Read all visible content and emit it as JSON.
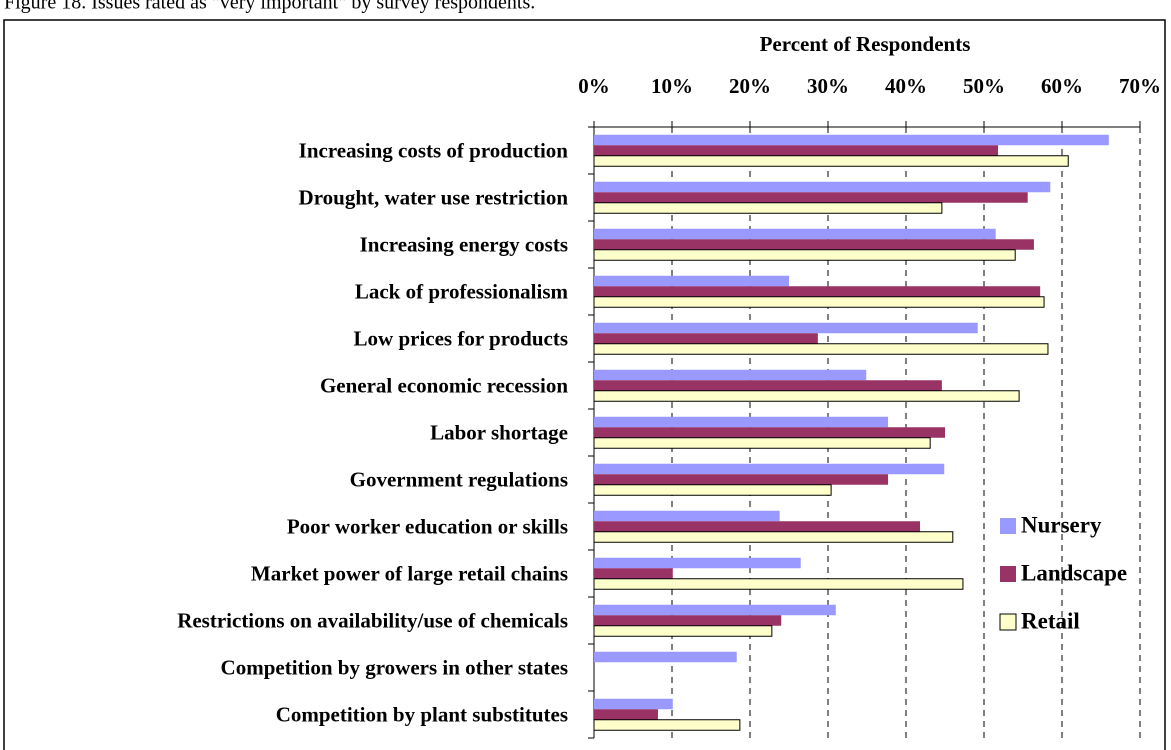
{
  "chart_data": {
    "type": "bar",
    "orientation": "horizontal",
    "caption": "Figure 18. Issues rated as \"very important\" by survey respondents.",
    "x_label": "Percent of Respondents",
    "categories": [
      "Increasing costs of production",
      "Drought, water use restriction",
      "Increasing energy costs",
      "Lack of professionalism",
      "Low prices for products",
      "General economic recession",
      "Labor shortage",
      "Government regulations",
      "Poor worker education or skills",
      "Market power of large retail chains",
      "Restrictions on availability/use of chemicals",
      "Competition by growers in other states",
      "Competition by plant substitutes"
    ],
    "series": [
      {
        "name": "Nursery",
        "color": "#9999ff",
        "values": [
          66.0,
          58.5,
          51.5,
          25.0,
          49.2,
          34.9,
          37.7,
          44.9,
          23.8,
          26.5,
          31.0,
          18.3,
          10.1
        ]
      },
      {
        "name": "Landscape",
        "color": "#993366",
        "values": [
          51.8,
          55.6,
          56.4,
          57.2,
          28.7,
          44.6,
          45.0,
          37.7,
          41.8,
          10.1,
          24.0,
          0,
          8.2
        ]
      },
      {
        "name": "Retail",
        "color": "#ffffcc",
        "values": [
          60.8,
          44.6,
          54.0,
          57.7,
          58.2,
          54.5,
          43.1,
          30.4,
          46.0,
          47.3,
          22.8,
          0,
          18.7
        ]
      }
    ],
    "xlim": [
      0,
      70
    ],
    "xticks": [
      {
        "value": 0,
        "label": "0%"
      },
      {
        "value": 10,
        "label": "10%"
      },
      {
        "value": 20,
        "label": "20%"
      },
      {
        "value": 30,
        "label": "30%"
      },
      {
        "value": 40,
        "label": "40%"
      },
      {
        "value": 50,
        "label": "50%"
      },
      {
        "value": 60,
        "label": "60%"
      },
      {
        "value": 70,
        "label": "70%"
      }
    ],
    "grid": true,
    "legend": "right"
  }
}
